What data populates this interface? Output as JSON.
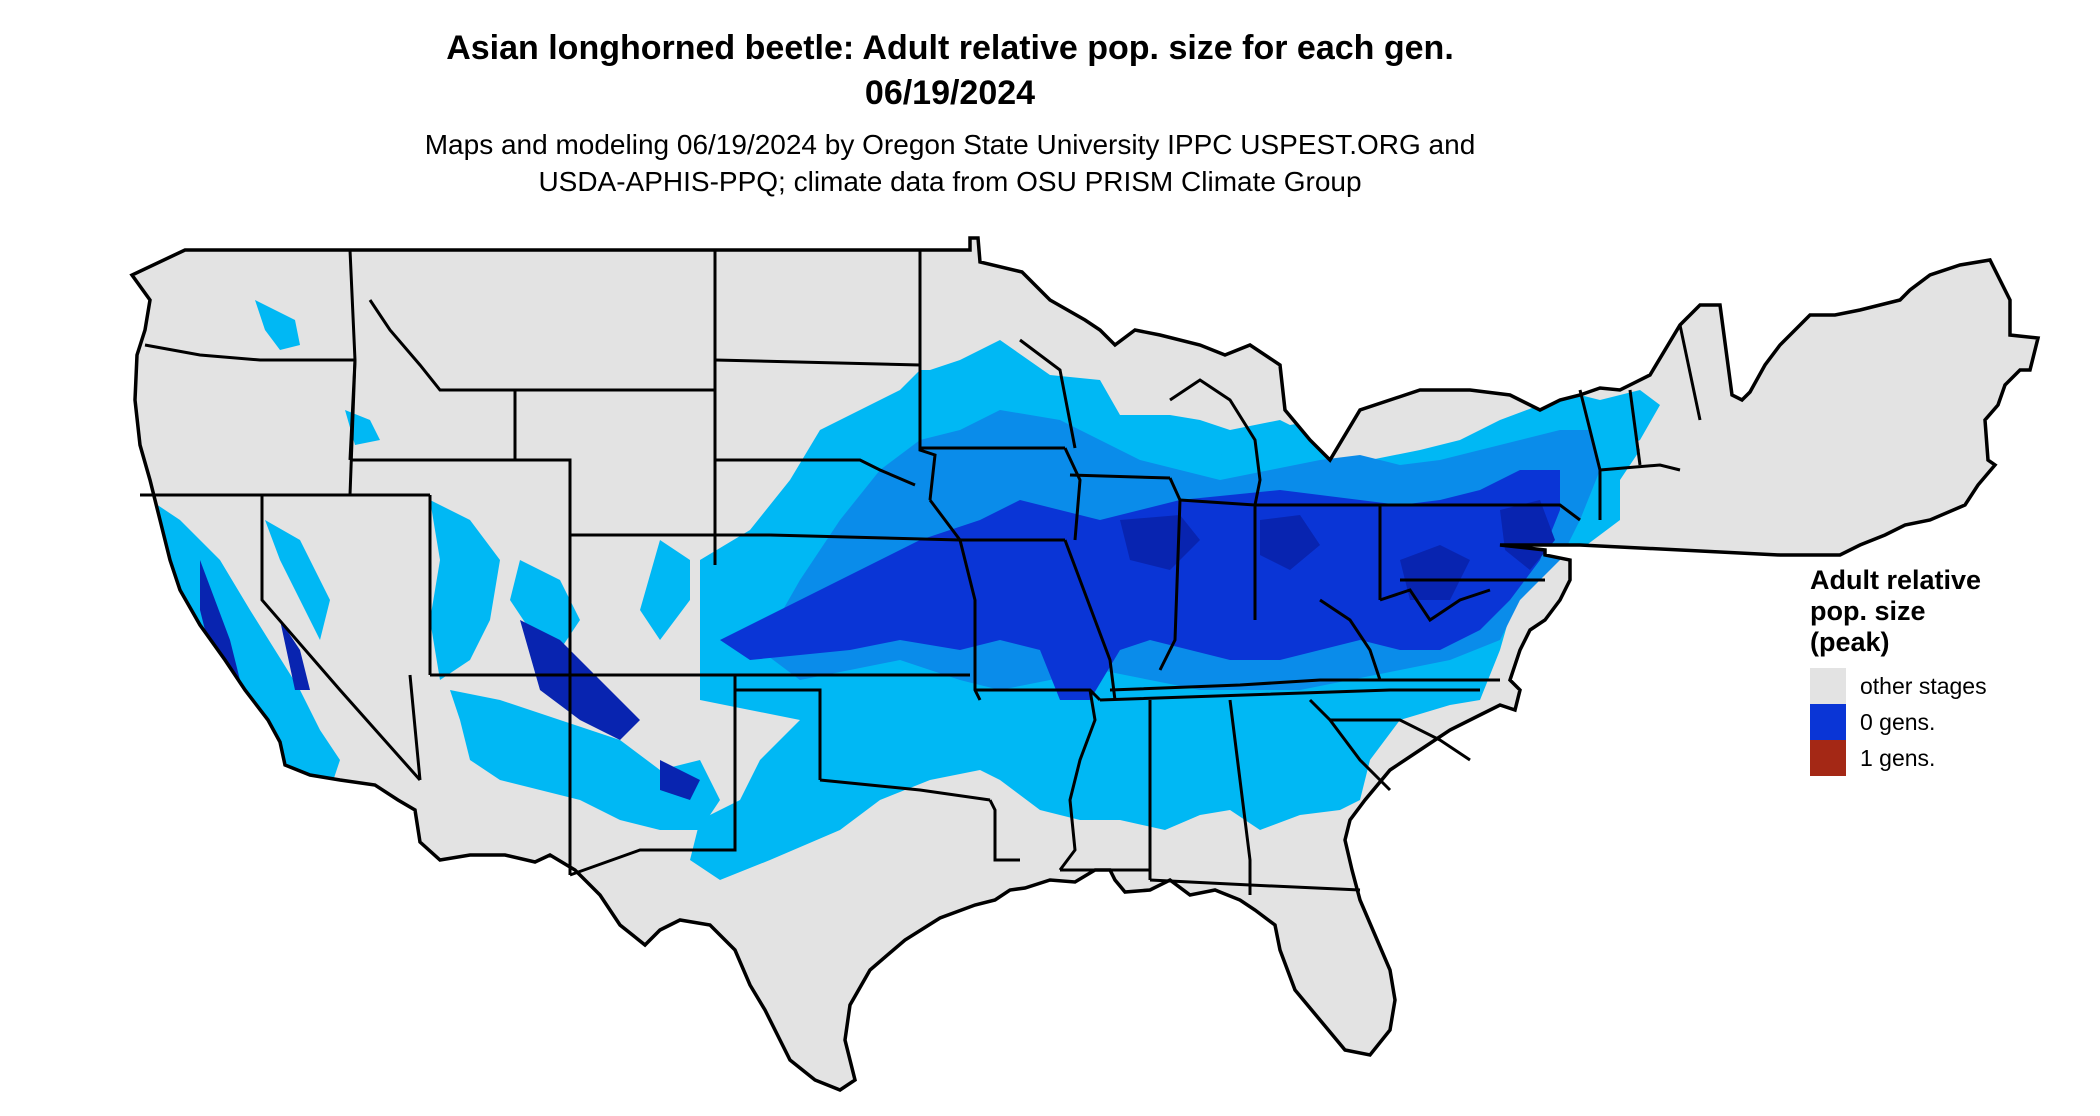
{
  "title": {
    "line1": "Asian longhorned beetle: Adult relative pop. size for each gen.",
    "line2": "06/19/2024"
  },
  "subtitle": {
    "line1": "Maps and modeling 06/19/2024 by Oregon State University IPPC USPEST.ORG and",
    "line2": "USDA-APHIS-PPQ; climate data from OSU PRISM Climate Group"
  },
  "map": {
    "region": "Contiguous United States",
    "layer": "Adult relative pop. size (peak)"
  },
  "legend": {
    "title_line1": "Adult relative",
    "title_line2": "pop. size",
    "title_line3": "(peak)",
    "items": [
      {
        "label": "other stages",
        "color": "#e3e3e3"
      },
      {
        "label": "0 gens.",
        "color": "#0a35d6"
      },
      {
        "label": "1 gens.",
        "color": "#a42815"
      }
    ]
  },
  "palette": {
    "land_other": "#e3e3e3",
    "light_blue": "#00b8f4",
    "medium_blue": "#0a8cea",
    "dark_blue": "#0a35d6",
    "deep_blue": "#0824b0",
    "borders": "#000000"
  }
}
